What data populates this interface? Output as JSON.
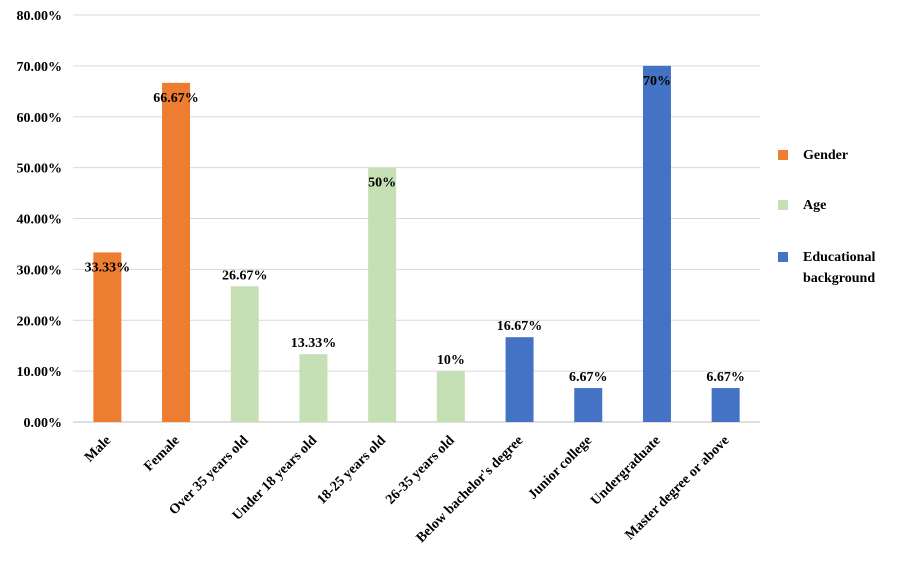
{
  "chart_data": {
    "type": "bar",
    "title": "",
    "xlabel": "",
    "ylabel": "",
    "ylim": [
      0,
      80
    ],
    "yticks": [
      "0.00%",
      "10.00%",
      "20.00%",
      "30.00%",
      "40.00%",
      "50.00%",
      "60.00%",
      "70.00%",
      "80.00%"
    ],
    "grid": true,
    "legend_position": "right",
    "categories": [
      "Male",
      "Female",
      "Over 35 years old",
      "Under 18 years old",
      "18-25 years old",
      "26-35 years old",
      "Below bachelor's degree",
      "Junior college",
      "Undergraduate",
      "Master degree or above"
    ],
    "values": [
      33.33,
      66.67,
      26.67,
      13.33,
      50,
      10,
      16.67,
      6.67,
      70,
      6.67
    ],
    "data_labels": [
      "33.33%",
      "66.67%",
      "26.67%",
      "13.33%",
      "50%",
      "10%",
      "16.67%",
      "6.67%",
      "70%",
      "6.67%"
    ],
    "bar_groups": [
      "Gender",
      "Gender",
      "Age",
      "Age",
      "Age",
      "Age",
      "Educational background",
      "Educational background",
      "Educational background",
      "Educational background"
    ],
    "series": [
      {
        "name": "Gender",
        "color": "#ED7D31"
      },
      {
        "name": "Age",
        "color": "#C5E0B4"
      },
      {
        "name": "Educational background",
        "color": "#4472C4"
      }
    ]
  }
}
